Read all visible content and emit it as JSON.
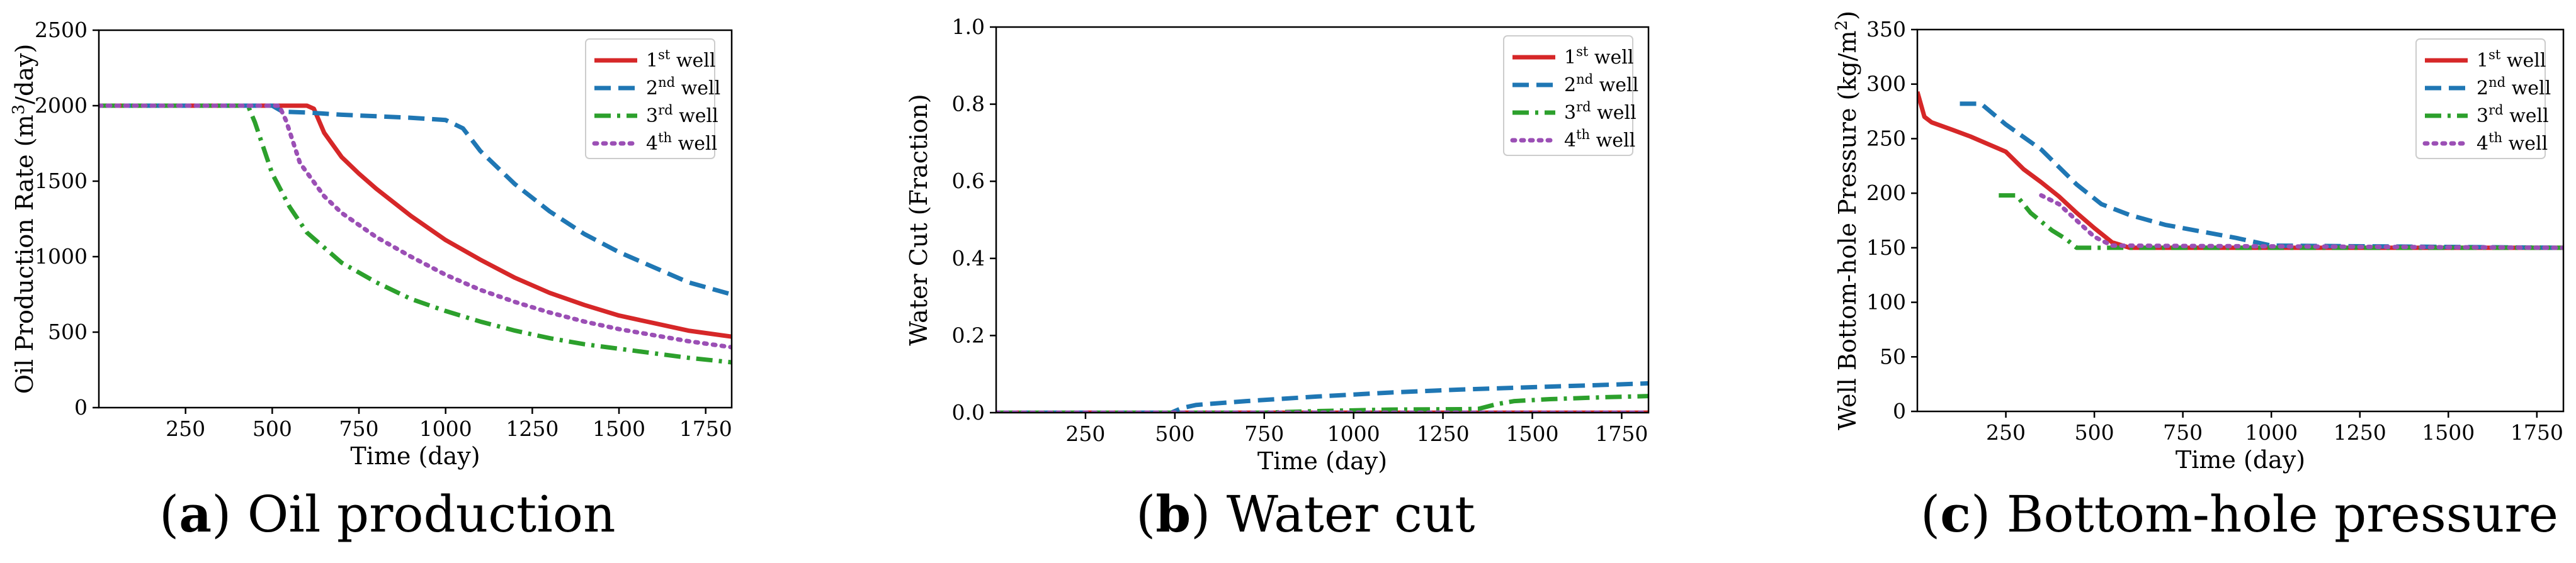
{
  "chart_data": [
    {
      "id": "a",
      "type": "line",
      "title": "",
      "xlabel": "Time (day)",
      "ylabel": "Oil Production Rate (m³/day)",
      "ylabel_parts": [
        "Oil Production Rate (m",
        "3",
        "/day)"
      ],
      "xlim": [
        0,
        1825
      ],
      "ylim": [
        0,
        2500
      ],
      "xticks": [
        250,
        500,
        750,
        1000,
        1250,
        1500,
        1750
      ],
      "yticks": [
        0,
        500,
        1000,
        1500,
        2000,
        2500
      ],
      "series": [
        {
          "name": "1st well",
          "sup": "st",
          "base": "1",
          "color": "#d62728",
          "dash": "solid",
          "x": [
            0,
            600,
            620,
            650,
            700,
            750,
            800,
            900,
            1000,
            1100,
            1200,
            1300,
            1400,
            1500,
            1600,
            1700,
            1825
          ],
          "y": [
            2000,
            2000,
            1980,
            1820,
            1660,
            1550,
            1450,
            1270,
            1110,
            980,
            860,
            760,
            680,
            610,
            560,
            510,
            470
          ]
        },
        {
          "name": "2nd well",
          "sup": "nd",
          "base": "2",
          "color": "#1f77b4",
          "dash": "dashed",
          "x": [
            0,
            500,
            530,
            600,
            700,
            800,
            900,
            1000,
            1050,
            1100,
            1200,
            1300,
            1400,
            1500,
            1600,
            1700,
            1825
          ],
          "y": [
            2000,
            2000,
            1960,
            1955,
            1940,
            1930,
            1920,
            1905,
            1850,
            1700,
            1480,
            1300,
            1150,
            1030,
            930,
            830,
            750
          ]
        },
        {
          "name": "3rd well",
          "sup": "rd",
          "base": "3",
          "color": "#2ca02c",
          "dash": "dashdot",
          "x": [
            0,
            430,
            450,
            500,
            550,
            600,
            700,
            800,
            900,
            1000,
            1100,
            1200,
            1300,
            1400,
            1500,
            1600,
            1700,
            1825
          ],
          "y": [
            2000,
            2000,
            1890,
            1550,
            1330,
            1160,
            960,
            830,
            720,
            640,
            570,
            510,
            460,
            420,
            390,
            360,
            330,
            300
          ]
        },
        {
          "name": "4th well",
          "sup": "th",
          "base": "4",
          "color": "#9b4fb5",
          "dash": "dotted",
          "x": [
            0,
            520,
            540,
            580,
            650,
            700,
            800,
            900,
            1000,
            1100,
            1200,
            1300,
            1400,
            1500,
            1600,
            1700,
            1825
          ],
          "y": [
            2000,
            2000,
            1900,
            1620,
            1400,
            1290,
            1130,
            1000,
            880,
            780,
            700,
            630,
            570,
            520,
            480,
            440,
            400
          ]
        }
      ]
    },
    {
      "id": "b",
      "type": "line",
      "title": "",
      "xlabel": "Time (day)",
      "ylabel": "Water Cut (Fraction)",
      "ylabel_parts": [
        "Water Cut (Fraction)",
        "",
        ""
      ],
      "xlim": [
        0,
        1825
      ],
      "ylim": [
        0,
        1.0
      ],
      "xticks": [
        250,
        500,
        750,
        1000,
        1250,
        1500,
        1750
      ],
      "yticks": [
        0.0,
        0.2,
        0.4,
        0.6,
        0.8,
        1.0
      ],
      "ytick_labels": [
        "0.0",
        "0.2",
        "0.4",
        "0.6",
        "0.8",
        "1.0"
      ],
      "series": [
        {
          "name": "1st well",
          "sup": "st",
          "base": "1",
          "color": "#d62728",
          "dash": "solid",
          "x": [
            0,
            1825
          ],
          "y": [
            0,
            0
          ]
        },
        {
          "name": "2nd well",
          "sup": "nd",
          "base": "2",
          "color": "#1f77b4",
          "dash": "dashed",
          "x": [
            0,
            490,
            520,
            560,
            700,
            900,
            1100,
            1300,
            1500,
            1700,
            1825
          ],
          "y": [
            0,
            0,
            0.012,
            0.02,
            0.03,
            0.042,
            0.052,
            0.06,
            0.066,
            0.072,
            0.076
          ]
        },
        {
          "name": "3rd well",
          "sup": "rd",
          "base": "3",
          "color": "#2ca02c",
          "dash": "dashdot",
          "x": [
            0,
            750,
            900,
            1100,
            1300,
            1350,
            1400,
            1450,
            1550,
            1700,
            1825
          ],
          "y": [
            0,
            0,
            0.004,
            0.008,
            0.009,
            0.01,
            0.022,
            0.03,
            0.035,
            0.04,
            0.043
          ]
        },
        {
          "name": "4th well",
          "sup": "th",
          "base": "4",
          "color": "#9b4fb5",
          "dash": "dotted",
          "x": [
            0,
            1825
          ],
          "y": [
            0,
            0
          ]
        }
      ]
    },
    {
      "id": "c",
      "type": "line",
      "title": "",
      "xlabel": "Time (day)",
      "ylabel": "Well Bottom-hole Pressure (kg/m²)",
      "ylabel_parts": [
        "Well Bottom-hole Pressure (kg/m",
        "2",
        ")"
      ],
      "xlim": [
        0,
        1825
      ],
      "ylim": [
        0,
        350
      ],
      "xticks": [
        250,
        500,
        750,
        1000,
        1250,
        1500,
        1750
      ],
      "yticks": [
        0,
        50,
        100,
        150,
        200,
        250,
        300,
        350
      ],
      "series": [
        {
          "name": "1st well",
          "sup": "st",
          "base": "1",
          "color": "#d62728",
          "dash": "solid",
          "x": [
            0,
            20,
            40,
            100,
            150,
            200,
            250,
            300,
            350,
            400,
            450,
            500,
            550,
            600,
            1825
          ],
          "y": [
            293,
            270,
            265,
            258,
            252,
            245,
            238,
            222,
            210,
            197,
            182,
            168,
            155,
            150,
            150
          ]
        },
        {
          "name": "2nd well",
          "sup": "nd",
          "base": "2",
          "color": "#1f77b4",
          "dash": "dashed",
          "x": [
            120,
            180,
            250,
            350,
            450,
            520,
            600,
            700,
            800,
            900,
            1000,
            1825
          ],
          "y": [
            282,
            282,
            263,
            240,
            208,
            190,
            180,
            171,
            165,
            159,
            152,
            150
          ]
        },
        {
          "name": "3rd well",
          "sup": "rd",
          "base": "3",
          "color": "#2ca02c",
          "dash": "dashdot",
          "x": [
            230,
            280,
            320,
            380,
            420,
            450,
            500,
            1825
          ],
          "y": [
            198,
            198,
            182,
            166,
            158,
            150,
            150,
            150
          ]
        },
        {
          "name": "4th well",
          "sup": "th",
          "base": "4",
          "color": "#9b4fb5",
          "dash": "dotted",
          "x": [
            350,
            400,
            450,
            500,
            550,
            1825
          ],
          "y": [
            198,
            190,
            175,
            160,
            152,
            150
          ]
        }
      ]
    }
  ],
  "captions": [
    {
      "letter": "a",
      "text": " Oil production"
    },
    {
      "letter": "b",
      "text": " Water cut"
    },
    {
      "letter": "c",
      "text": " Bottom-hole pressure"
    }
  ],
  "legend_suffix": " well"
}
